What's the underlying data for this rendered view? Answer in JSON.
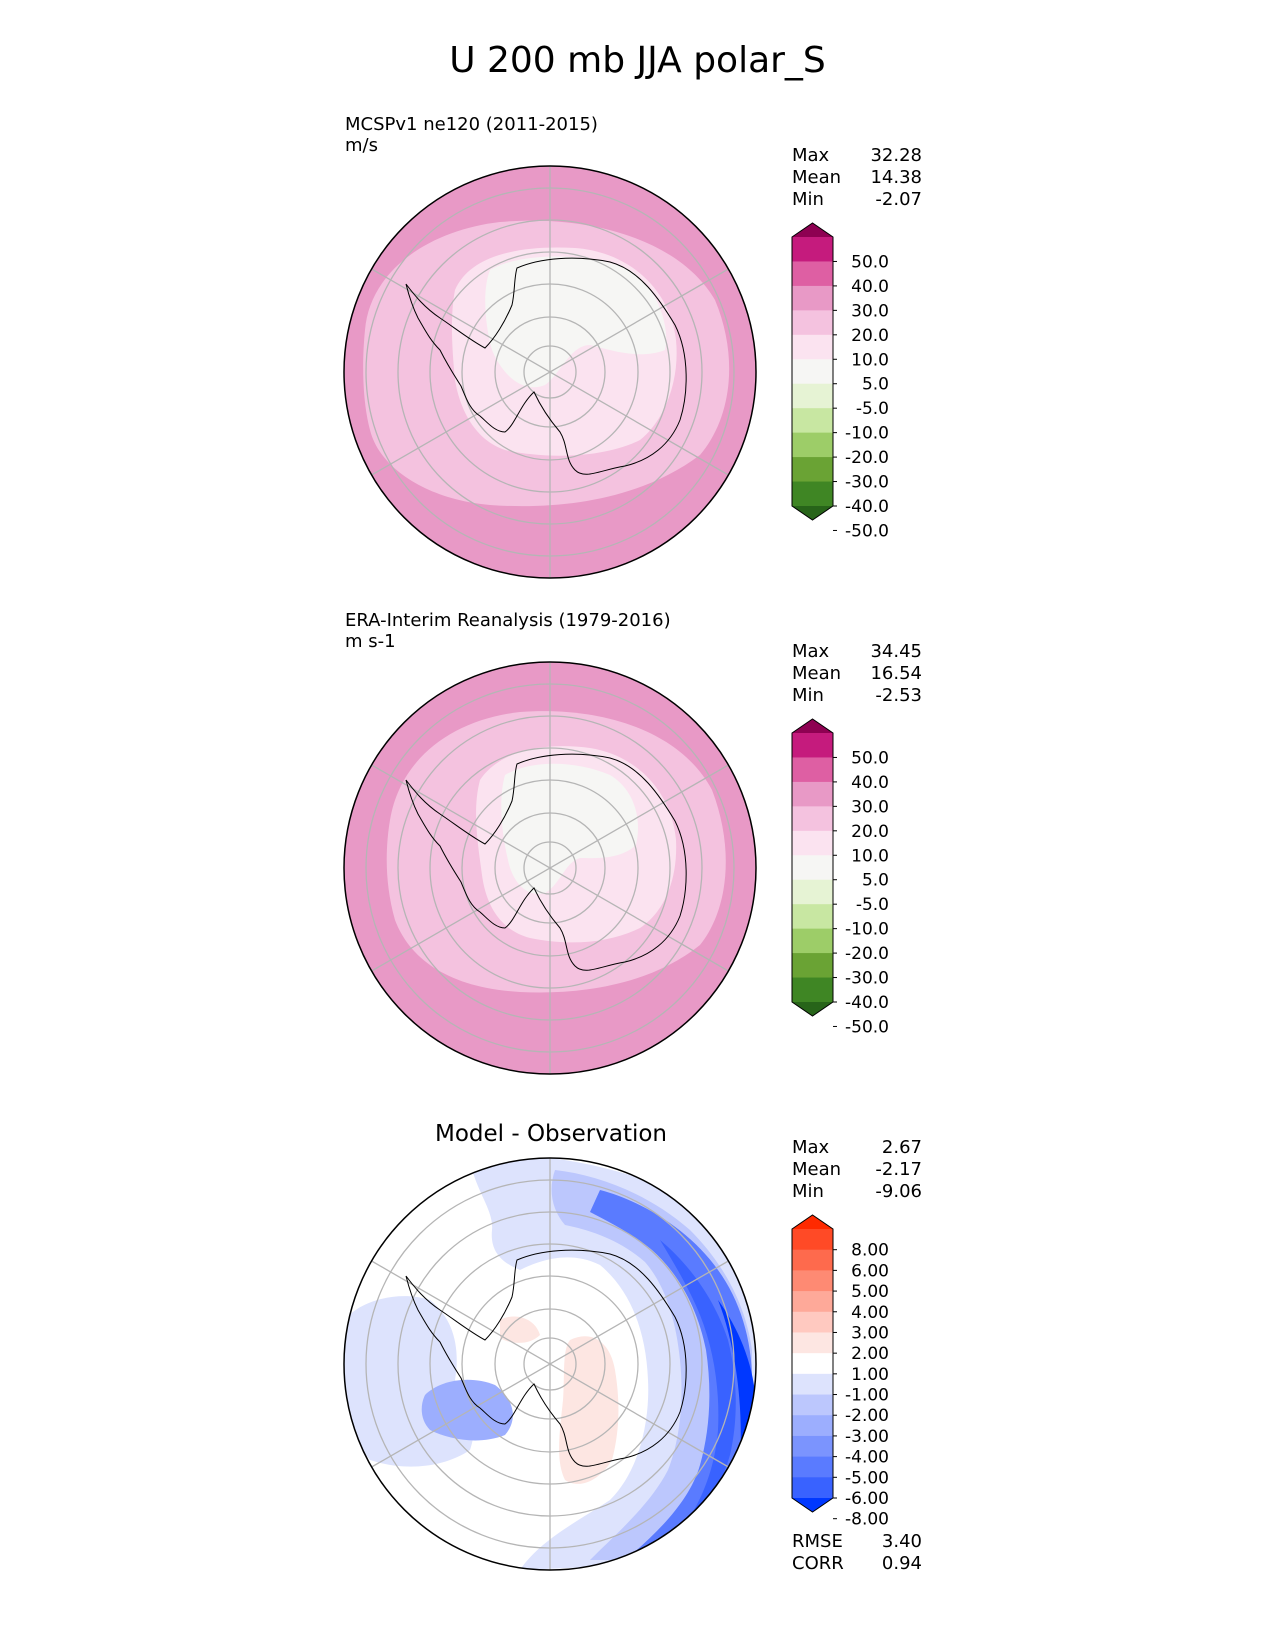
{
  "title": "U 200 mb JJA polar_S",
  "chart_data": [
    {
      "type": "heatmap",
      "projection": "south-polar-stereographic",
      "title": "MCSPv1 ne120 (2011-2015)",
      "units": "m/s",
      "stats": {
        "max_label": "Max",
        "max": "32.28",
        "mean_label": "Mean",
        "mean": "14.38",
        "min_label": "Min",
        "min": "-2.07"
      },
      "colorbar": {
        "ticks": [
          "50.0",
          "40.0",
          "30.0",
          "20.0",
          "10.0",
          "5.0",
          "-5.0",
          "-10.0",
          "-20.0",
          "-30.0",
          "-40.0",
          "-50.0"
        ],
        "colors": [
          "#8e0152",
          "#c51b7d",
          "#de5fa3",
          "#e899c6",
          "#f4c2df",
          "#fbe3f0",
          "#f6f6f4",
          "#e6f3d4",
          "#c8e7a2",
          "#9dcd68",
          "#6aa334",
          "#3f8624",
          "#276419"
        ]
      },
      "field_levels": [
        {
          "band": "20-30",
          "color": "#e899c6"
        },
        {
          "band": "10-20",
          "color": "#f4c2df"
        },
        {
          "band": "5-10",
          "color": "#fbe3f0"
        },
        {
          "band": "-5-5",
          "color": "#f6f6f4"
        },
        {
          "band": "30-40",
          "color": "#de5fa3"
        }
      ]
    },
    {
      "type": "heatmap",
      "projection": "south-polar-stereographic",
      "title": "ERA-Interim Reanalysis (1979-2016)",
      "units": "m s-1",
      "stats": {
        "max_label": "Max",
        "max": "34.45",
        "mean_label": "Mean",
        "mean": "16.54",
        "min_label": "Min",
        "min": "-2.53"
      },
      "colorbar": {
        "ticks": [
          "50.0",
          "40.0",
          "30.0",
          "20.0",
          "10.0",
          "5.0",
          "-5.0",
          "-10.0",
          "-20.0",
          "-30.0",
          "-40.0",
          "-50.0"
        ],
        "colors": [
          "#8e0152",
          "#c51b7d",
          "#de5fa3",
          "#e899c6",
          "#f4c2df",
          "#fbe3f0",
          "#f6f6f4",
          "#e6f3d4",
          "#c8e7a2",
          "#9dcd68",
          "#6aa334",
          "#3f8624",
          "#276419"
        ]
      },
      "field_levels": [
        {
          "band": "20-30",
          "color": "#e899c6"
        },
        {
          "band": "10-20",
          "color": "#f4c2df"
        },
        {
          "band": "5-10",
          "color": "#fbe3f0"
        },
        {
          "band": "-5-5",
          "color": "#f6f6f4"
        },
        {
          "band": "30-40",
          "color": "#de5fa3"
        }
      ]
    },
    {
      "type": "heatmap",
      "projection": "south-polar-stereographic",
      "title": "Model - Observation",
      "stats": {
        "max_label": "Max",
        "max": "2.67",
        "mean_label": "Mean",
        "mean": "-2.17",
        "min_label": "Min",
        "min": "-9.06",
        "rmse_label": "RMSE",
        "rmse": "3.40",
        "corr_label": "CORR",
        "corr": "0.94"
      },
      "colorbar": {
        "ticks": [
          "8.00",
          "6.00",
          "5.00",
          "4.00",
          "3.00",
          "2.00",
          "1.00",
          "-1.00",
          "-2.00",
          "-3.00",
          "-4.00",
          "-5.00",
          "-6.00",
          "-8.00"
        ],
        "colors": [
          "#ff2a00",
          "#ff4a26",
          "#fe6a4d",
          "#fe8a73",
          "#fea999",
          "#ffc9c0",
          "#fde6e2",
          "#ffffff",
          "#dde3fd",
          "#bcc7fd",
          "#9caefe",
          "#7b94fe",
          "#5a7bff",
          "#3962ff",
          "#0038ff"
        ]
      },
      "field_levels": [
        {
          "band": "-1-1",
          "color": "#ffffff"
        },
        {
          "band": "-2--1",
          "color": "#dde3fd"
        },
        {
          "band": "-3--2",
          "color": "#bcc7fd"
        },
        {
          "band": "-4--3",
          "color": "#9caefe"
        },
        {
          "band": "-6--5",
          "color": "#5a7bff"
        },
        {
          "band": "-8--6",
          "color": "#3962ff"
        },
        {
          "band": "<-8",
          "color": "#0038ff"
        },
        {
          "band": "1-2",
          "color": "#fde6e2"
        }
      ]
    }
  ]
}
